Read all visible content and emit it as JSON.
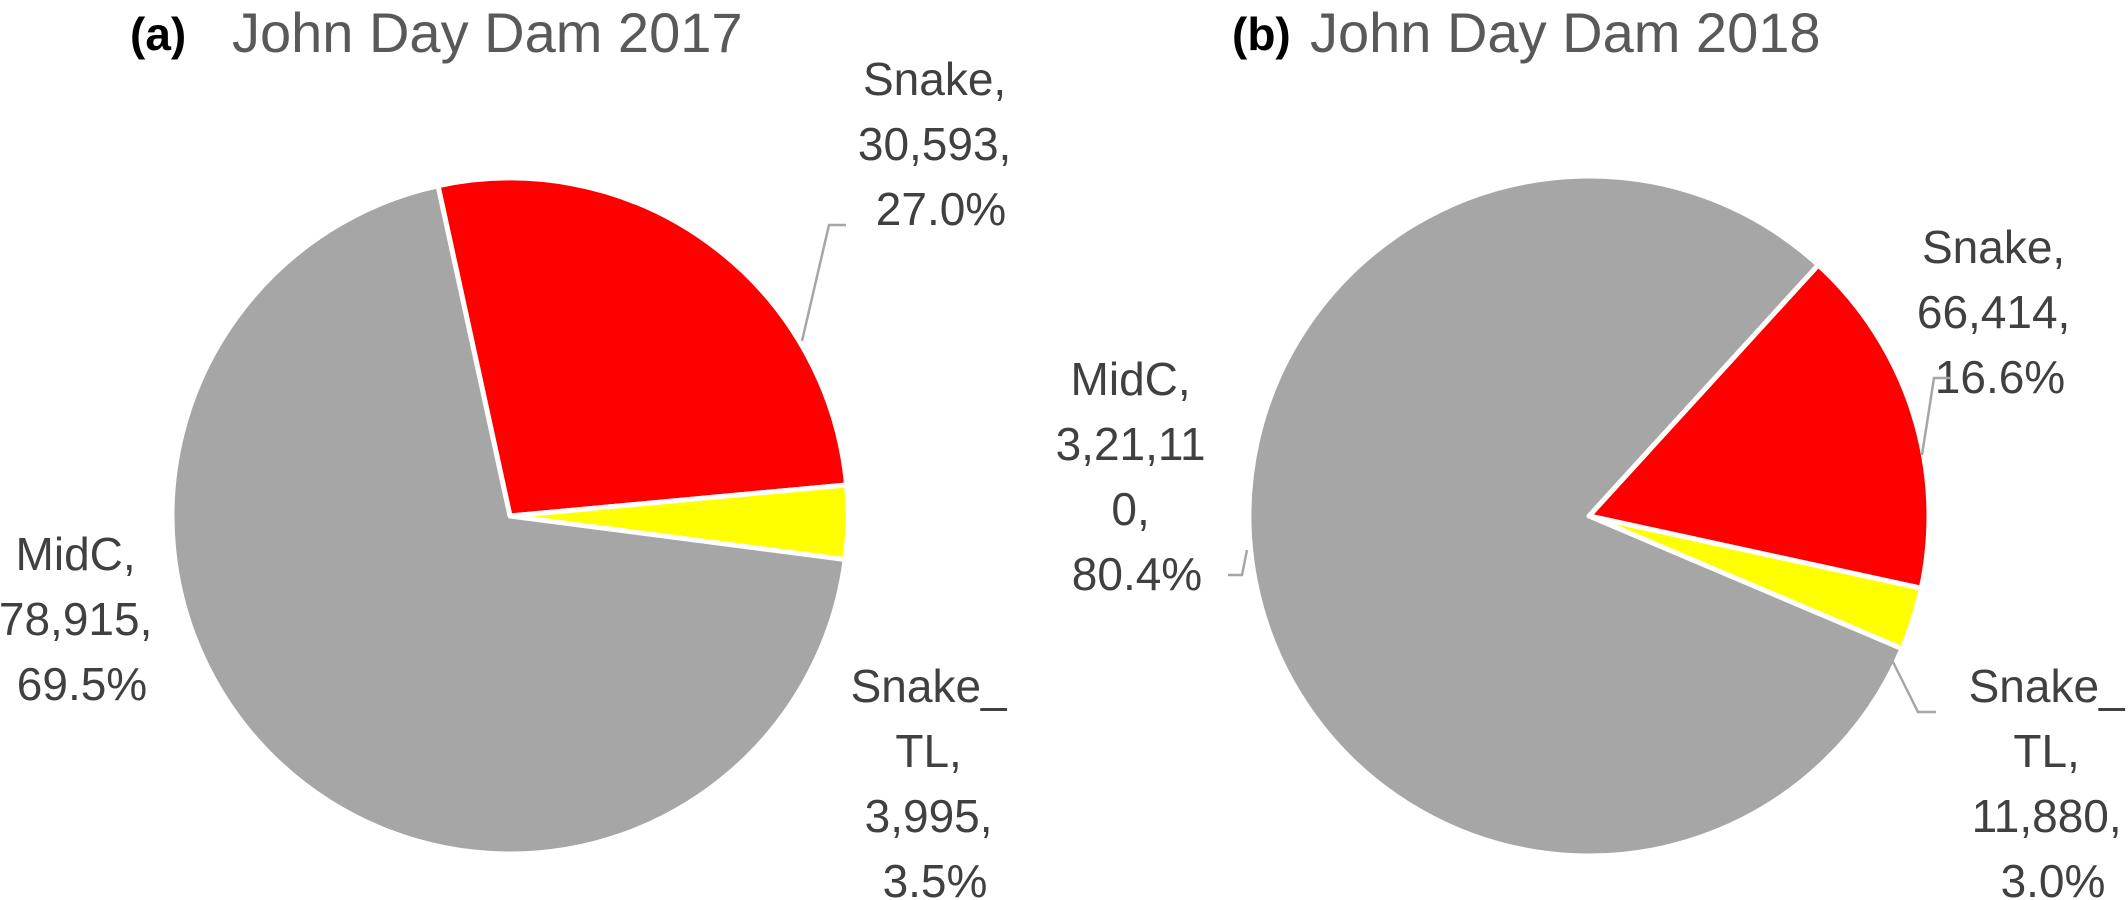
{
  "chart_data": [
    {
      "type": "pie",
      "panel_label": "(a)",
      "title": "John Day Dam 2017",
      "slices": [
        {
          "name": "Snake",
          "value": 30593,
          "percent": 27.0,
          "color": "#ff0000",
          "lines": [
            "Snake,",
            "30,593,",
            "27.0%"
          ]
        },
        {
          "name": "Snake_TL",
          "value": 3995,
          "percent": 3.5,
          "color": "#ffff00",
          "lines": [
            "Snake_",
            "TL,",
            "3,995,",
            "3.5%"
          ]
        },
        {
          "name": "MidC",
          "value": 78915,
          "percent": 69.5,
          "color": "#a6a6a6",
          "lines": [
            "MidC,",
            "78,915,",
            "69.5%"
          ]
        }
      ]
    },
    {
      "type": "pie",
      "panel_label": "(b)",
      "title": "John Day Dam 2018",
      "slices": [
        {
          "name": "Snake",
          "value": 66414,
          "percent": 16.6,
          "color": "#ff0000",
          "lines": [
            "Snake,",
            "66,414,",
            "16.6%"
          ]
        },
        {
          "name": "Snake_TL",
          "value": 11880,
          "percent": 3.0,
          "color": "#ffff00",
          "lines": [
            "Snake_",
            "TL,",
            "11,880,",
            "3.0%"
          ]
        },
        {
          "name": "MidC",
          "value": 321110,
          "percent": 80.4,
          "color": "#a6a6a6",
          "lines": [
            "MidC,",
            "3,21,11",
            "0,",
            "80.4%"
          ]
        }
      ]
    }
  ]
}
